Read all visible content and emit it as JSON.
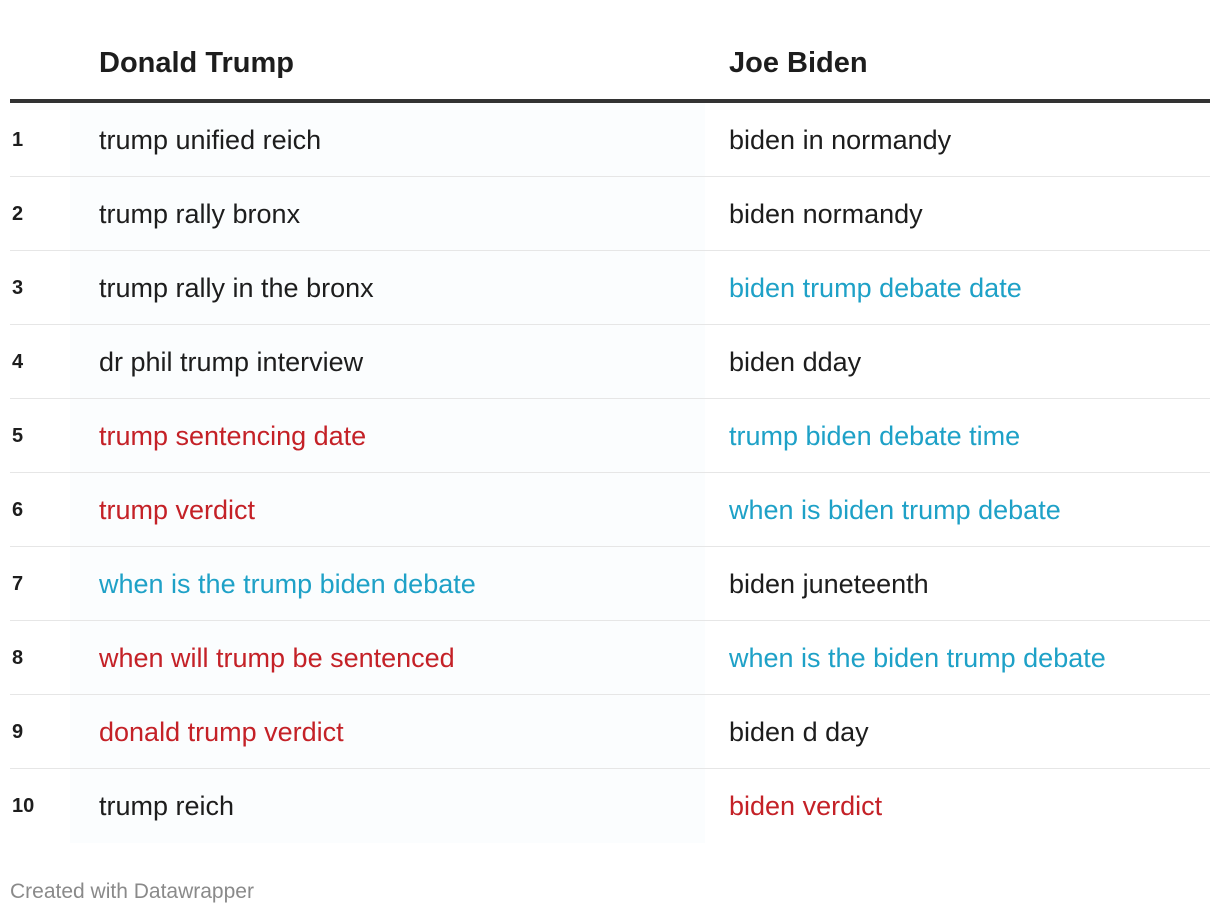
{
  "chart_data": {
    "type": "table",
    "columns": [
      "",
      "Donald Trump",
      "Joe Biden"
    ],
    "colors": {
      "default": "#1d1d1d",
      "red": "#c42127",
      "blue": "#1ea1c7"
    },
    "rows": [
      {
        "rank": "1",
        "trump": {
          "text": "trump unified reich",
          "color": "default"
        },
        "biden": {
          "text": "biden in normandy",
          "color": "default"
        }
      },
      {
        "rank": "2",
        "trump": {
          "text": "trump rally bronx",
          "color": "default"
        },
        "biden": {
          "text": "biden normandy",
          "color": "default"
        }
      },
      {
        "rank": "3",
        "trump": {
          "text": "trump rally in the bronx",
          "color": "default"
        },
        "biden": {
          "text": "biden trump debate date",
          "color": "blue"
        }
      },
      {
        "rank": "4",
        "trump": {
          "text": "dr phil trump interview",
          "color": "default"
        },
        "biden": {
          "text": "biden dday",
          "color": "default"
        }
      },
      {
        "rank": "5",
        "trump": {
          "text": "trump sentencing date",
          "color": "red"
        },
        "biden": {
          "text": "trump biden debate time",
          "color": "blue"
        }
      },
      {
        "rank": "6",
        "trump": {
          "text": "trump verdict",
          "color": "red"
        },
        "biden": {
          "text": "when is biden trump debate",
          "color": "blue"
        }
      },
      {
        "rank": "7",
        "trump": {
          "text": "when is the trump biden debate",
          "color": "blue"
        },
        "biden": {
          "text": "biden juneteenth",
          "color": "default"
        }
      },
      {
        "rank": "8",
        "trump": {
          "text": "when will trump be sentenced",
          "color": "red"
        },
        "biden": {
          "text": "when is the biden trump debate",
          "color": "blue"
        }
      },
      {
        "rank": "9",
        "trump": {
          "text": "donald trump verdict",
          "color": "red"
        },
        "biden": {
          "text": "biden d day",
          "color": "default"
        }
      },
      {
        "rank": "10",
        "trump": {
          "text": "trump reich",
          "color": "default"
        },
        "biden": {
          "text": "biden verdict",
          "color": "red"
        }
      }
    ]
  },
  "footer": {
    "credit": "Created with Datawrapper"
  }
}
